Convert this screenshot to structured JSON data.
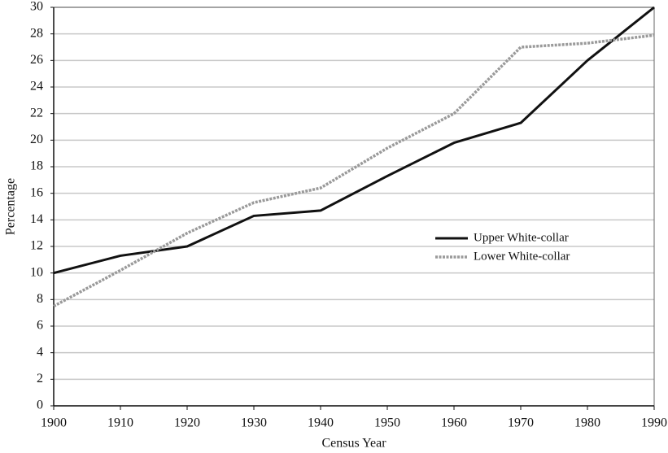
{
  "chart_data": {
    "type": "line",
    "x_label": "Census Year",
    "y_label": "Percentage",
    "x": [
      1900,
      1910,
      1920,
      1930,
      1940,
      1950,
      1960,
      1970,
      1980,
      1990
    ],
    "series": [
      {
        "name": "Upper White-collar",
        "color": "#111111",
        "line_style": "solid",
        "values": [
          10,
          11.3,
          12,
          14.3,
          14.7,
          17.3,
          19.8,
          21.3,
          26,
          30
        ]
      },
      {
        "name": "Lower White-collar",
        "color": "#9a9a9a",
        "line_style": "dotted",
        "values": [
          7.5,
          10.2,
          13,
          15.3,
          16.4,
          19.4,
          22,
          27,
          27.3,
          27.9
        ]
      }
    ],
    "xlim": [
      1900,
      1990
    ],
    "xticks": [
      1900,
      1910,
      1920,
      1930,
      1940,
      1950,
      1960,
      1970,
      1980,
      1990
    ],
    "ylim": [
      0,
      30
    ],
    "yticks": [
      0,
      2,
      4,
      6,
      8,
      10,
      12,
      14,
      16,
      18,
      20,
      22,
      24,
      26,
      28,
      30
    ],
    "grid": true,
    "legend": "right"
  }
}
